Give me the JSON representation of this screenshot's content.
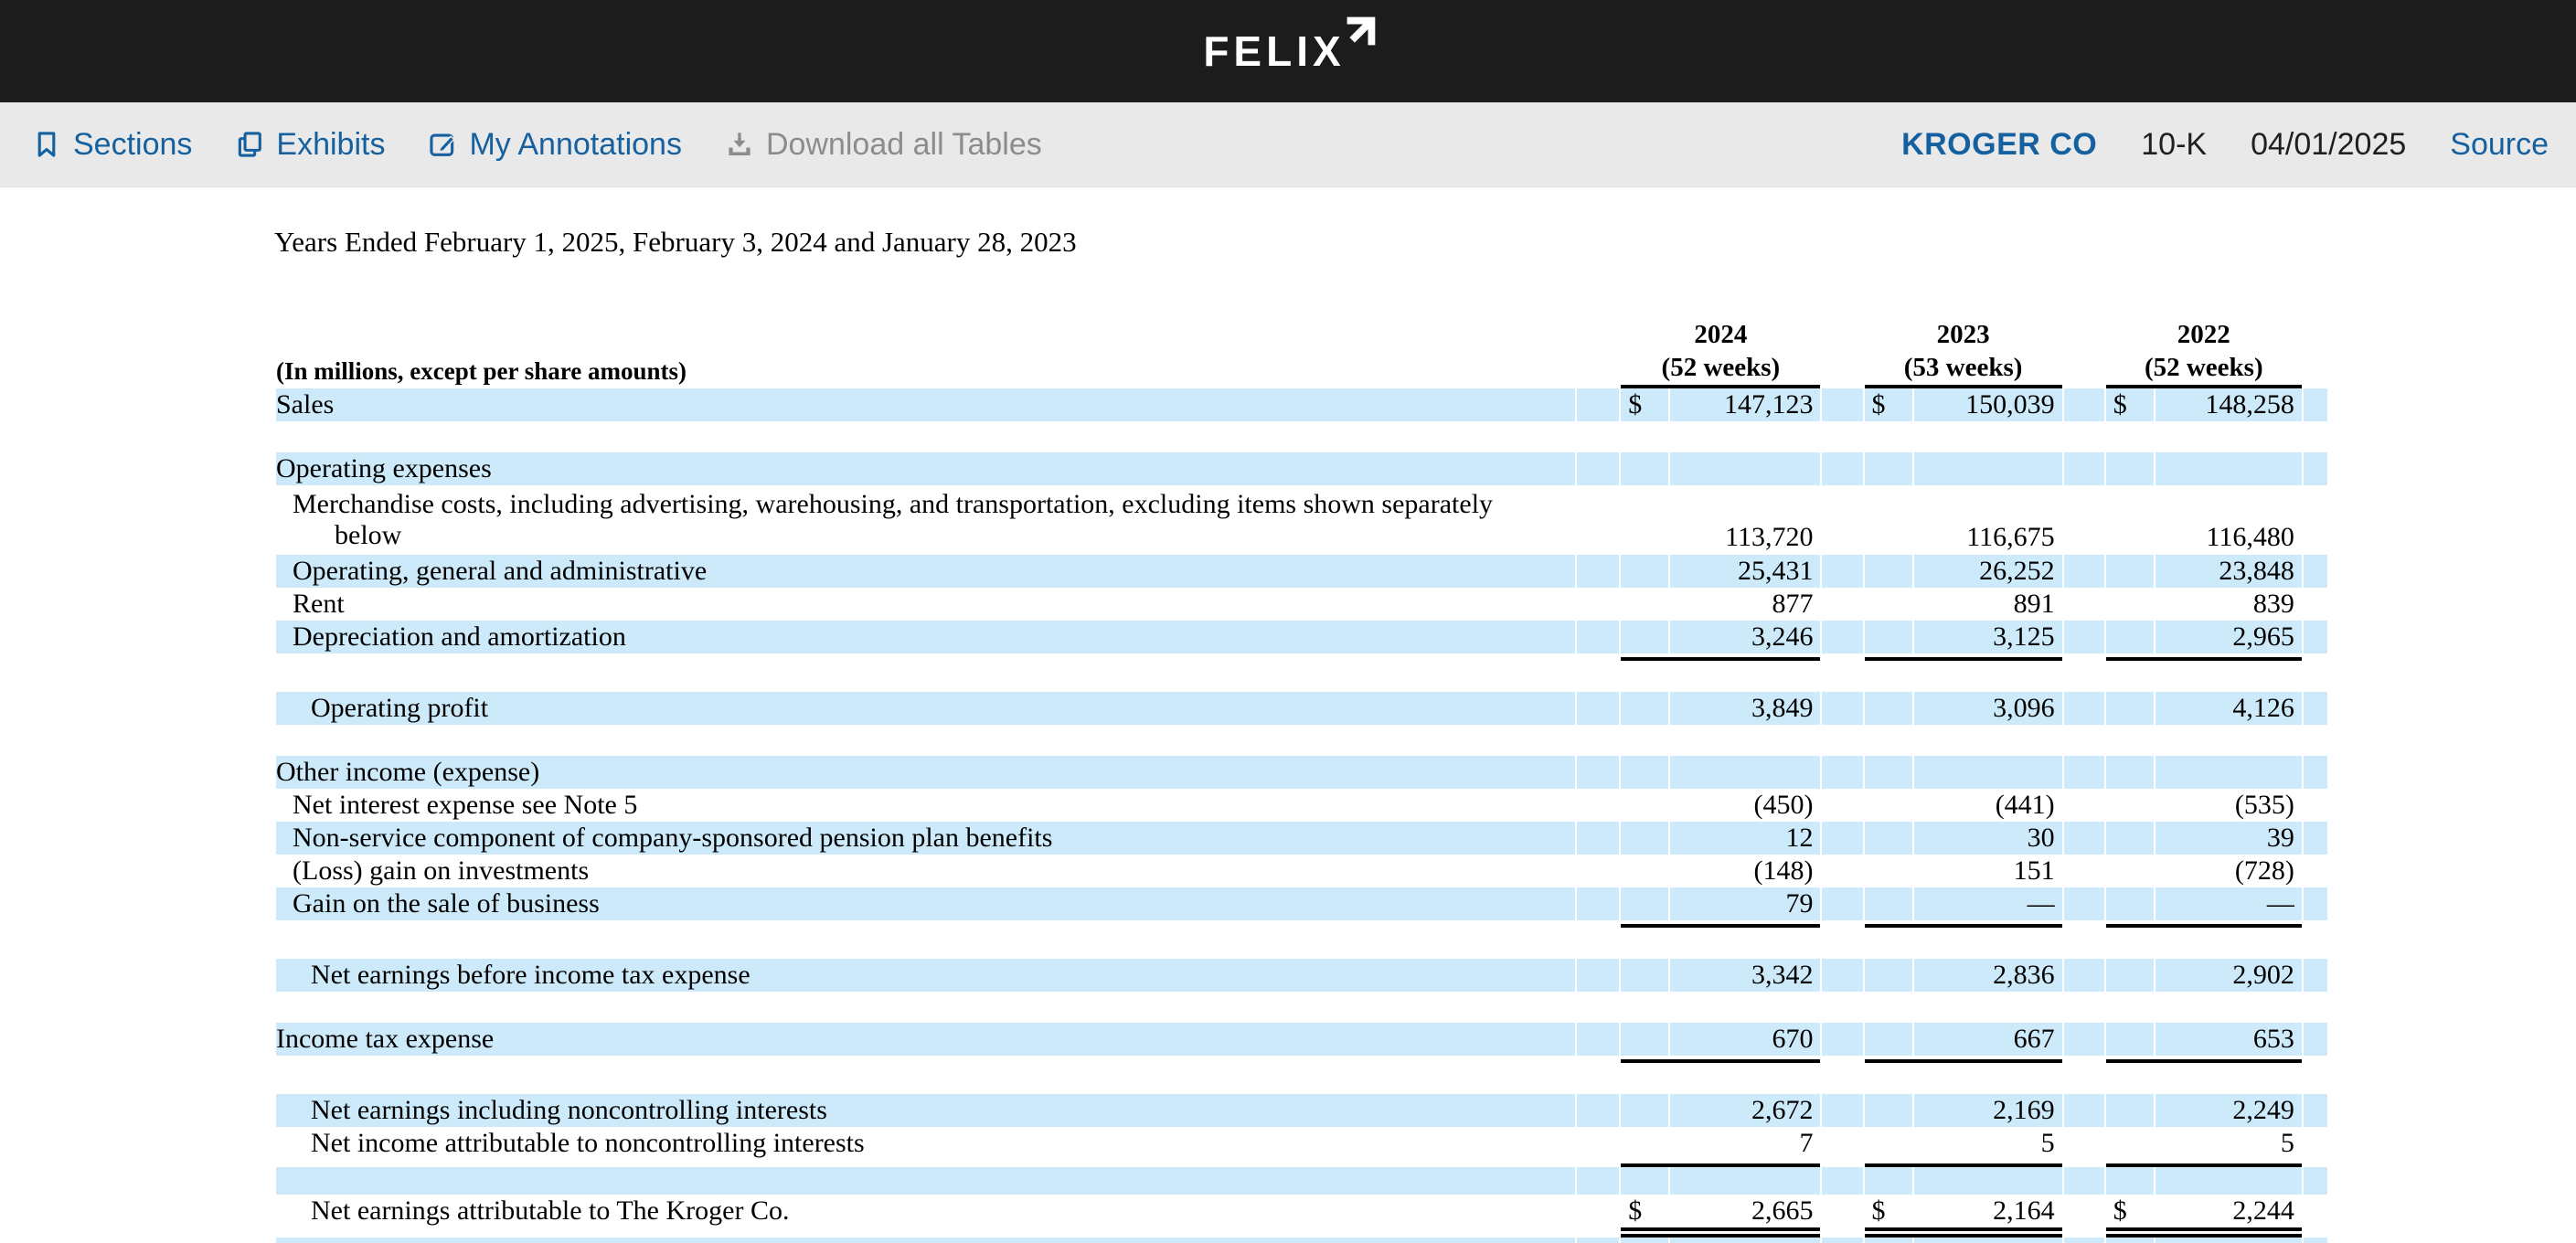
{
  "brand": {
    "logo_text": "FELIX"
  },
  "toolbar": {
    "items": [
      {
        "label": "Sections",
        "icon": "bookmark-icon",
        "disabled": false
      },
      {
        "label": "Exhibits",
        "icon": "copy-icon",
        "disabled": false
      },
      {
        "label": "My Annotations",
        "icon": "edit-icon",
        "disabled": false
      },
      {
        "label": "Download all Tables",
        "icon": "download-icon",
        "disabled": true
      }
    ],
    "company": "KROGER CO",
    "form_type": "10-K",
    "filing_date": "04/01/2025",
    "source_label": "Source"
  },
  "document": {
    "title": "Years Ended February 1, 2025, February 3, 2024 and January 28, 2023",
    "table": {
      "units_note": "(In millions, except per share amounts)",
      "columns": [
        {
          "year": "2024",
          "weeks": "(52 weeks)"
        },
        {
          "year": "2023",
          "weeks": "(53 weeks)"
        },
        {
          "year": "2022",
          "weeks": "(52 weeks)"
        }
      ],
      "rows": [
        {
          "type": "row",
          "label": "Sales",
          "indent": 0,
          "dollar": true,
          "shade": true,
          "values": [
            "147,123",
            "150,039",
            "148,258"
          ]
        },
        {
          "type": "gap"
        },
        {
          "type": "row",
          "label": "Operating expenses",
          "indent": 0,
          "shade": true,
          "values": null
        },
        {
          "type": "row",
          "label": "Merchandise costs, including advertising, warehousing, and transportation, excluding items shown separately",
          "label_line2": "below",
          "indent": 1,
          "shade": false,
          "tall": true,
          "values": [
            "113,720",
            "116,675",
            "116,480"
          ]
        },
        {
          "type": "row",
          "label": "Operating, general and administrative",
          "indent": 1,
          "shade": true,
          "values": [
            "25,431",
            "26,252",
            "23,848"
          ]
        },
        {
          "type": "row",
          "label": "Rent",
          "indent": 1,
          "shade": false,
          "values": [
            "877",
            "891",
            "839"
          ]
        },
        {
          "type": "row",
          "label": "Depreciation and amortization",
          "indent": 1,
          "shade": true,
          "values": [
            "3,246",
            "3,125",
            "2,965"
          ],
          "rule": "single"
        },
        {
          "type": "gap"
        },
        {
          "type": "row",
          "label": "Operating profit",
          "indent": 2,
          "shade": true,
          "values": [
            "3,849",
            "3,096",
            "4,126"
          ]
        },
        {
          "type": "gap"
        },
        {
          "type": "row",
          "label": "Other income (expense)",
          "indent": 0,
          "shade": true,
          "values": null
        },
        {
          "type": "row",
          "label": "Net interest expense see Note 5",
          "indent": 1,
          "shade": false,
          "values": [
            "(450)",
            "(441)",
            "(535)"
          ]
        },
        {
          "type": "row",
          "label": "Non-service component of company-sponsored pension plan benefits",
          "indent": 1,
          "shade": true,
          "values": [
            "12",
            "30",
            "39"
          ]
        },
        {
          "type": "row",
          "label": "(Loss) gain on investments",
          "indent": 1,
          "shade": false,
          "values": [
            "(148)",
            "151",
            "(728)"
          ]
        },
        {
          "type": "row",
          "label": "Gain on the sale of business",
          "indent": 1,
          "shade": true,
          "values": [
            "79",
            "—",
            "—"
          ],
          "rule": "single"
        },
        {
          "type": "gap"
        },
        {
          "type": "row",
          "label": "Net earnings before income tax expense",
          "indent": 2,
          "shade": true,
          "values": [
            "3,342",
            "2,836",
            "2,902"
          ]
        },
        {
          "type": "gap"
        },
        {
          "type": "row",
          "label": "Income tax expense",
          "indent": 0,
          "shade": true,
          "values": [
            "670",
            "667",
            "653"
          ],
          "rule": "single"
        },
        {
          "type": "gap"
        },
        {
          "type": "row",
          "label": "Net earnings including noncontrolling interests",
          "indent": 2,
          "shade": true,
          "values": [
            "2,672",
            "2,169",
            "2,249"
          ]
        },
        {
          "type": "row",
          "label": "Net income attributable to noncontrolling interests",
          "indent": 2,
          "shade": false,
          "values": [
            "7",
            "5",
            "5"
          ],
          "rule": "single"
        },
        {
          "type": "blank",
          "shade": true
        },
        {
          "type": "row",
          "label": "Net earnings attributable to The Kroger Co.",
          "indent": 2,
          "dollar": true,
          "shade": false,
          "values": [
            "2,665",
            "2,164",
            "2,244"
          ],
          "rule": "double"
        },
        {
          "type": "blank",
          "shade": true,
          "partial": true
        }
      ]
    }
  },
  "colors": {
    "accent_blue": "#15609f",
    "row_highlight": "#cdeafb",
    "topbar_bg": "#1c1c1c",
    "toolbar_bg": "#e9e9e9",
    "disabled_gray": "#8c8c8c"
  }
}
